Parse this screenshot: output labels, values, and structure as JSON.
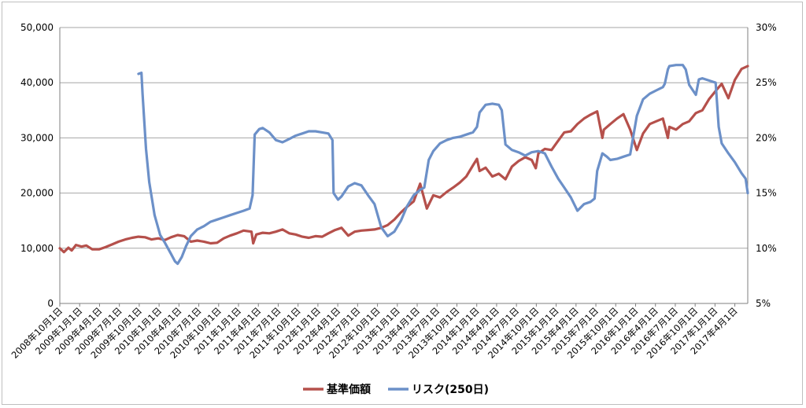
{
  "chart_data": {
    "type": "line",
    "y_left_ticks": [
      "50,000",
      "40,000",
      "30,000",
      "20,000",
      "10,000",
      "0"
    ],
    "y_right_ticks": [
      "30%",
      "25%",
      "20%",
      "15%",
      "10%",
      "5%"
    ],
    "ylim_left": [
      0,
      50000
    ],
    "ylim_right": [
      5,
      30
    ],
    "x_tick_labels": [
      "2008年10月1日",
      "2009年1月1日",
      "2009年4月1日",
      "2009年7月1日",
      "2009年10月1日",
      "2010年1月1日",
      "2010年4月1日",
      "2010年7月1日",
      "2010年10月1日",
      "2011年1月1日",
      "2011年4月1日",
      "2011年7月1日",
      "2011年10月1日",
      "2012年1月1日",
      "2012年4月1日",
      "2012年7月1日",
      "2012年10月1日",
      "2013年1月1日",
      "2013年4月1日",
      "2013年7月1日",
      "2013年10月1日",
      "2014年1月1日",
      "2014年4月1日",
      "2014年7月1日",
      "2014年10月1日",
      "2015年1月1日",
      "2015年4月1日",
      "2015年7月1日",
      "2015年10月1日",
      "2016年1月1日",
      "2016年4月1日",
      "2016年7月1日",
      "2016年10月1日",
      "2017年1月1日",
      "2017年4月1日"
    ],
    "x_range": [
      "2008-10-01",
      "2017-06-30"
    ],
    "grid": "horizontal",
    "legend_position": "bottom",
    "series": [
      {
        "name": "基準価額",
        "axis": "left",
        "color": "#b5504b",
        "points": [
          [
            "2008-10-01",
            10000
          ],
          [
            "2008-10-20",
            9300
          ],
          [
            "2008-11-10",
            10100
          ],
          [
            "2008-11-25",
            9600
          ],
          [
            "2008-12-15",
            10600
          ],
          [
            "2009-01-10",
            10300
          ],
          [
            "2009-02-01",
            10500
          ],
          [
            "2009-03-01",
            9800
          ],
          [
            "2009-04-01",
            9800
          ],
          [
            "2009-05-01",
            10200
          ],
          [
            "2009-06-01",
            10700
          ],
          [
            "2009-07-01",
            11200
          ],
          [
            "2009-08-01",
            11600
          ],
          [
            "2009-09-01",
            11900
          ],
          [
            "2009-10-01",
            12100
          ],
          [
            "2009-11-01",
            12000
          ],
          [
            "2009-12-01",
            11600
          ],
          [
            "2010-01-01",
            11800
          ],
          [
            "2010-02-01",
            11500
          ],
          [
            "2010-03-01",
            12000
          ],
          [
            "2010-04-01",
            12400
          ],
          [
            "2010-05-01",
            12200
          ],
          [
            "2010-06-01",
            11200
          ],
          [
            "2010-07-01",
            11400
          ],
          [
            "2010-08-01",
            11200
          ],
          [
            "2010-09-01",
            10900
          ],
          [
            "2010-10-01",
            11000
          ],
          [
            "2010-11-01",
            11800
          ],
          [
            "2010-12-01",
            12300
          ],
          [
            "2011-01-01",
            12700
          ],
          [
            "2011-02-01",
            13200
          ],
          [
            "2011-03-10",
            13000
          ],
          [
            "2011-03-18",
            10900
          ],
          [
            "2011-04-01",
            12500
          ],
          [
            "2011-05-01",
            12800
          ],
          [
            "2011-06-01",
            12700
          ],
          [
            "2011-07-01",
            13000
          ],
          [
            "2011-08-01",
            13400
          ],
          [
            "2011-09-01",
            12700
          ],
          [
            "2011-10-01",
            12500
          ],
          [
            "2011-11-01",
            12100
          ],
          [
            "2011-12-01",
            11900
          ],
          [
            "2012-01-01",
            12200
          ],
          [
            "2012-02-01",
            12100
          ],
          [
            "2012-03-01",
            12700
          ],
          [
            "2012-04-01",
            13300
          ],
          [
            "2012-05-01",
            13700
          ],
          [
            "2012-06-01",
            12300
          ],
          [
            "2012-07-01",
            13000
          ],
          [
            "2012-08-01",
            13200
          ],
          [
            "2012-09-01",
            13300
          ],
          [
            "2012-10-01",
            13400
          ],
          [
            "2012-11-01",
            13700
          ],
          [
            "2012-12-01",
            14200
          ],
          [
            "2013-01-01",
            15200
          ],
          [
            "2013-02-01",
            16500
          ],
          [
            "2013-03-01",
            17500
          ],
          [
            "2013-04-01",
            18500
          ],
          [
            "2013-05-01",
            21700
          ],
          [
            "2013-06-01",
            17200
          ],
          [
            "2013-07-01",
            19600
          ],
          [
            "2013-08-01",
            19200
          ],
          [
            "2013-09-01",
            20200
          ],
          [
            "2013-10-01",
            21000
          ],
          [
            "2013-11-01",
            21900
          ],
          [
            "2013-12-01",
            23000
          ],
          [
            "2014-01-01",
            25000
          ],
          [
            "2014-01-20",
            26200
          ],
          [
            "2014-02-01",
            24000
          ],
          [
            "2014-03-01",
            24600
          ],
          [
            "2014-04-01",
            23000
          ],
          [
            "2014-05-01",
            23500
          ],
          [
            "2014-06-01",
            22500
          ],
          [
            "2014-07-01",
            24800
          ],
          [
            "2014-08-01",
            25800
          ],
          [
            "2014-09-01",
            26500
          ],
          [
            "2014-10-01",
            26000
          ],
          [
            "2014-10-20",
            24500
          ],
          [
            "2014-11-01",
            27200
          ],
          [
            "2014-12-01",
            28000
          ],
          [
            "2015-01-01",
            27800
          ],
          [
            "2015-02-01",
            29500
          ],
          [
            "2015-03-01",
            31000
          ],
          [
            "2015-04-01",
            31200
          ],
          [
            "2015-05-01",
            32500
          ],
          [
            "2015-06-01",
            33500
          ],
          [
            "2015-07-01",
            34200
          ],
          [
            "2015-08-01",
            34800
          ],
          [
            "2015-08-25",
            30000
          ],
          [
            "2015-09-01",
            31500
          ],
          [
            "2015-10-01",
            32500
          ],
          [
            "2015-11-01",
            33500
          ],
          [
            "2015-12-01",
            34300
          ],
          [
            "2016-01-01",
            31500
          ],
          [
            "2016-02-01",
            27800
          ],
          [
            "2016-03-01",
            30800
          ],
          [
            "2016-04-01",
            32500
          ],
          [
            "2016-05-01",
            33000
          ],
          [
            "2016-06-01",
            33500
          ],
          [
            "2016-06-24",
            30000
          ],
          [
            "2016-07-01",
            32000
          ],
          [
            "2016-08-01",
            31500
          ],
          [
            "2016-09-01",
            32500
          ],
          [
            "2016-10-01",
            33000
          ],
          [
            "2016-11-01",
            34500
          ],
          [
            "2016-12-01",
            35000
          ],
          [
            "2017-01-01",
            37000
          ],
          [
            "2017-02-01",
            38500
          ],
          [
            "2017-03-01",
            39800
          ],
          [
            "2017-04-01",
            37200
          ],
          [
            "2017-05-01",
            40500
          ],
          [
            "2017-06-01",
            42500
          ],
          [
            "2017-06-30",
            43000
          ]
        ]
      },
      {
        "name": "リスク(250日)",
        "axis": "right",
        "color": "#6c90c8",
        "points": [
          [
            "2009-10-01",
            25.8
          ],
          [
            "2009-10-15",
            25.9
          ],
          [
            "2009-10-20",
            24.0
          ],
          [
            "2009-11-05",
            19.0
          ],
          [
            "2009-11-20",
            16.0
          ],
          [
            "2009-12-15",
            13.0
          ],
          [
            "2010-01-10",
            11.2
          ],
          [
            "2010-02-01",
            10.5
          ],
          [
            "2010-03-01",
            9.5
          ],
          [
            "2010-03-20",
            8.8
          ],
          [
            "2010-04-01",
            8.6
          ],
          [
            "2010-04-20",
            9.2
          ],
          [
            "2010-05-10",
            10.2
          ],
          [
            "2010-06-01",
            11.1
          ],
          [
            "2010-07-01",
            11.7
          ],
          [
            "2010-08-01",
            12.0
          ],
          [
            "2010-09-01",
            12.4
          ],
          [
            "2010-10-01",
            12.6
          ],
          [
            "2010-11-01",
            12.8
          ],
          [
            "2010-12-01",
            13.0
          ],
          [
            "2011-01-01",
            13.2
          ],
          [
            "2011-02-01",
            13.4
          ],
          [
            "2011-03-01",
            13.6
          ],
          [
            "2011-03-15",
            14.8
          ],
          [
            "2011-03-25",
            20.3
          ],
          [
            "2011-04-15",
            20.8
          ],
          [
            "2011-05-01",
            20.9
          ],
          [
            "2011-06-01",
            20.5
          ],
          [
            "2011-07-01",
            19.8
          ],
          [
            "2011-08-01",
            19.6
          ],
          [
            "2011-09-01",
            19.9
          ],
          [
            "2011-10-01",
            20.2
          ],
          [
            "2011-11-01",
            20.4
          ],
          [
            "2011-12-01",
            20.6
          ],
          [
            "2012-01-01",
            20.6
          ],
          [
            "2012-02-01",
            20.5
          ],
          [
            "2012-03-01",
            20.4
          ],
          [
            "2012-03-20",
            19.8
          ],
          [
            "2012-03-25",
            15.0
          ],
          [
            "2012-04-15",
            14.4
          ],
          [
            "2012-05-01",
            14.7
          ],
          [
            "2012-06-01",
            15.6
          ],
          [
            "2012-07-01",
            15.9
          ],
          [
            "2012-08-01",
            15.7
          ],
          [
            "2012-09-01",
            14.8
          ],
          [
            "2012-10-01",
            14.0
          ],
          [
            "2012-11-01",
            11.9
          ],
          [
            "2012-12-01",
            11.1
          ],
          [
            "2013-01-01",
            11.5
          ],
          [
            "2013-02-01",
            12.5
          ],
          [
            "2013-03-01",
            13.8
          ],
          [
            "2013-04-01",
            14.8
          ],
          [
            "2013-05-01",
            15.3
          ],
          [
            "2013-05-20",
            15.5
          ],
          [
            "2013-06-10",
            18.0
          ],
          [
            "2013-07-01",
            18.8
          ],
          [
            "2013-08-01",
            19.5
          ],
          [
            "2013-09-01",
            19.8
          ],
          [
            "2013-10-01",
            20.0
          ],
          [
            "2013-11-01",
            20.1
          ],
          [
            "2013-12-01",
            20.3
          ],
          [
            "2014-01-01",
            20.5
          ],
          [
            "2014-01-20",
            21.0
          ],
          [
            "2014-02-01",
            22.3
          ],
          [
            "2014-03-01",
            23.0
          ],
          [
            "2014-04-01",
            23.1
          ],
          [
            "2014-05-01",
            23.0
          ],
          [
            "2014-05-15",
            22.5
          ],
          [
            "2014-06-01",
            19.4
          ],
          [
            "2014-07-01",
            18.9
          ],
          [
            "2014-08-01",
            18.7
          ],
          [
            "2014-09-01",
            18.4
          ],
          [
            "2014-10-01",
            18.7
          ],
          [
            "2014-11-01",
            18.8
          ],
          [
            "2014-12-01",
            18.6
          ],
          [
            "2015-01-01",
            17.4
          ],
          [
            "2015-02-01",
            16.3
          ],
          [
            "2015-03-01",
            15.5
          ],
          [
            "2015-04-01",
            14.6
          ],
          [
            "2015-05-01",
            13.4
          ],
          [
            "2015-06-01",
            14.0
          ],
          [
            "2015-07-01",
            14.2
          ],
          [
            "2015-07-20",
            14.5
          ],
          [
            "2015-08-01",
            17.0
          ],
          [
            "2015-08-25",
            18.6
          ],
          [
            "2015-09-15",
            18.3
          ],
          [
            "2015-10-01",
            18.0
          ],
          [
            "2015-11-01",
            18.1
          ],
          [
            "2015-12-01",
            18.3
          ],
          [
            "2016-01-01",
            18.5
          ],
          [
            "2016-02-01",
            22.0
          ],
          [
            "2016-03-01",
            23.5
          ],
          [
            "2016-04-01",
            24.0
          ],
          [
            "2016-05-01",
            24.3
          ],
          [
            "2016-06-01",
            24.6
          ],
          [
            "2016-06-10",
            24.9
          ],
          [
            "2016-06-24",
            26.2
          ],
          [
            "2016-07-01",
            26.5
          ],
          [
            "2016-08-01",
            26.6
          ],
          [
            "2016-09-01",
            26.6
          ],
          [
            "2016-09-15",
            26.2
          ],
          [
            "2016-10-01",
            24.8
          ],
          [
            "2016-11-01",
            23.9
          ],
          [
            "2016-11-15",
            25.3
          ],
          [
            "2016-12-01",
            25.4
          ],
          [
            "2017-01-01",
            25.2
          ],
          [
            "2017-02-01",
            25.0
          ],
          [
            "2017-02-15",
            21.0
          ],
          [
            "2017-03-01",
            19.5
          ],
          [
            "2017-04-01",
            18.6
          ],
          [
            "2017-05-01",
            17.8
          ],
          [
            "2017-06-01",
            16.8
          ],
          [
            "2017-06-20",
            16.3
          ],
          [
            "2017-06-30",
            15.0
          ]
        ]
      }
    ]
  }
}
